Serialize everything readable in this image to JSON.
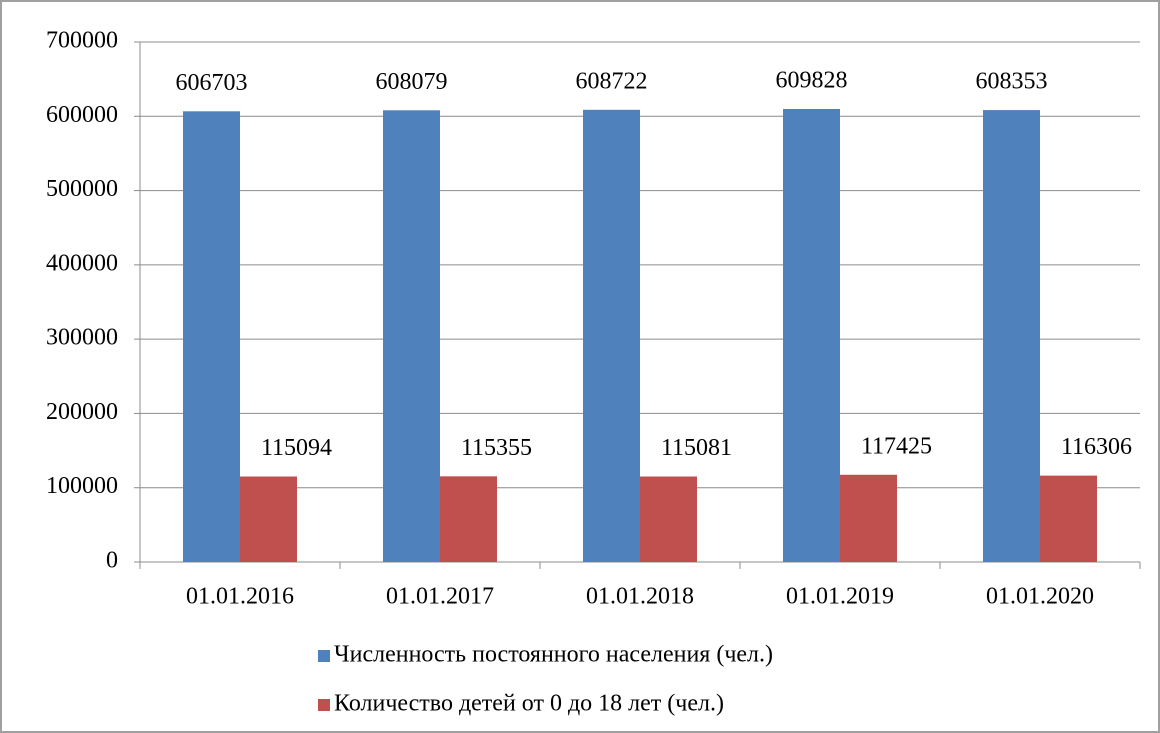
{
  "chart_data": {
    "type": "bar",
    "categories": [
      "01.01.2016",
      "01.01.2017",
      "01.01.2018",
      "01.01.2019",
      "01.01.2020"
    ],
    "series": [
      {
        "name": "Численность постоянного населения (чел.)",
        "color": "#4f81bd",
        "values": [
          606703,
          608079,
          608722,
          609828,
          608353
        ]
      },
      {
        "name": "Количество детей от 0 до 18 лет (чел.)",
        "color": "#c0504d",
        "values": [
          115094,
          115355,
          115081,
          117425,
          116306
        ]
      }
    ],
    "ylim": [
      0,
      700000
    ],
    "yticks": [
      0,
      100000,
      200000,
      300000,
      400000,
      500000,
      600000,
      700000
    ],
    "grid": true,
    "legend": "bottom"
  }
}
